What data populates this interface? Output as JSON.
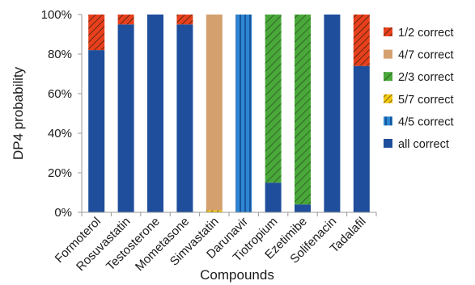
{
  "chart_data": {
    "type": "bar",
    "stacked": true,
    "normalized": true,
    "title": "",
    "xlabel": "Compounds",
    "ylabel": "DP4 probability",
    "ylim": [
      0,
      100
    ],
    "yticks": [
      "0%",
      "20%",
      "40%",
      "60%",
      "80%",
      "100%"
    ],
    "grid": false,
    "legend_position": "right",
    "categories": [
      "Formoterol",
      "Rosuvastatin",
      "Testosterone",
      "Mometasone",
      "Simvastatin",
      "Darunavir",
      "Tiotropium",
      "Ezetimibe",
      "Solifenacin",
      "Tadalafil"
    ],
    "series": [
      {
        "name": "all correct",
        "color": "#1f4e9c",
        "pattern": "solid",
        "values": [
          82,
          95,
          100,
          95,
          0,
          0,
          15,
          4,
          100,
          74
        ]
      },
      {
        "name": "4/5 correct",
        "color": "#2d86d4",
        "pattern": "vertical-lines",
        "values": [
          0,
          0,
          0,
          0,
          0,
          100,
          0,
          0,
          0,
          0
        ]
      },
      {
        "name": "5/7 correct",
        "color": "#f2c811",
        "pattern": "diagonal-lines",
        "values": [
          0,
          0,
          0,
          0,
          1,
          0,
          0,
          0,
          0,
          0
        ]
      },
      {
        "name": "2/3 correct",
        "color": "#4aa83a",
        "pattern": "diagonal-lines",
        "values": [
          0,
          0,
          0,
          0,
          0,
          0,
          85,
          96,
          0,
          0
        ]
      },
      {
        "name": "4/7 correct",
        "color": "#d4a06e",
        "pattern": "solid",
        "values": [
          0,
          0,
          0,
          0,
          99,
          0,
          0,
          0,
          0,
          0
        ]
      },
      {
        "name": "1/2 correct",
        "color": "#e8401c",
        "pattern": "diagonal-lines",
        "values": [
          18,
          5,
          0,
          5,
          0,
          0,
          0,
          0,
          0,
          26
        ]
      }
    ],
    "legend_order": [
      "1/2 correct",
      "4/7 correct",
      "2/3 correct",
      "5/7 correct",
      "4/5 correct",
      "all correct"
    ]
  }
}
